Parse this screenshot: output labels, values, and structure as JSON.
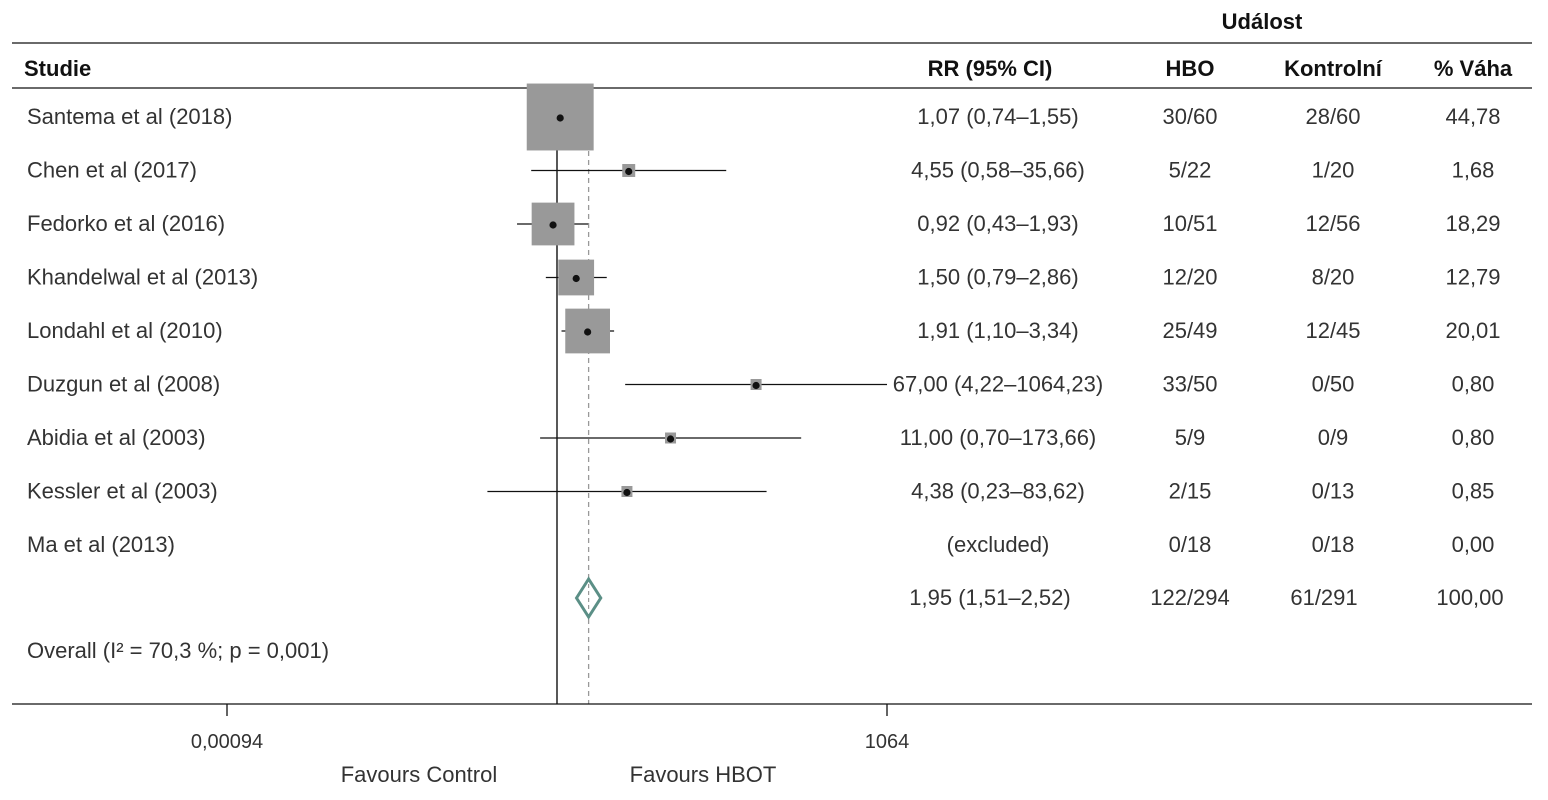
{
  "header": {
    "event_group": "Událost",
    "study": "Studie",
    "rr": "RR (95% CI)",
    "hbo": "HBO",
    "control": "Kontrolní",
    "weight": "% Váha"
  },
  "chart_data": {
    "type": "forest",
    "scale": "log",
    "xlim": [
      0.00094,
      1064
    ],
    "x_ticks": [
      {
        "value": 0.00094,
        "label": "0,00094"
      },
      {
        "value": 1064,
        "label": "1064"
      }
    ],
    "null_line": 1,
    "pooled_line": 1.95,
    "favours_left": "Favours Control",
    "favours_right": "Favours HBOT",
    "studies": [
      {
        "name": "Santema et al (2018)",
        "rr": 1.07,
        "lo": 0.74,
        "hi": 1.55,
        "rr_text": "1,07 (0,74–1,55)",
        "hbo": "30/60",
        "control": "28/60",
        "weight": 44.78,
        "weight_text": "44,78"
      },
      {
        "name": "Chen et al (2017)",
        "rr": 4.55,
        "lo": 0.58,
        "hi": 35.66,
        "rr_text": "4,55 (0,58–35,66)",
        "hbo": "5/22",
        "control": "1/20",
        "weight": 1.68,
        "weight_text": "1,68"
      },
      {
        "name": "Fedorko et al (2016)",
        "rr": 0.92,
        "lo": 0.43,
        "hi": 1.93,
        "rr_text": "0,92 (0,43–1,93)",
        "hbo": "10/51",
        "control": "12/56",
        "weight": 18.29,
        "weight_text": "18,29"
      },
      {
        "name": "Khandelwal et al (2013)",
        "rr": 1.5,
        "lo": 0.79,
        "hi": 2.86,
        "rr_text": "1,50 (0,79–2,86)",
        "hbo": "12/20",
        "control": "8/20",
        "weight": 12.79,
        "weight_text": "12,79"
      },
      {
        "name": "Londahl et al (2010)",
        "rr": 1.91,
        "lo": 1.1,
        "hi": 3.34,
        "rr_text": "1,91 (1,10–3,34)",
        "hbo": "25/49",
        "control": "12/45",
        "weight": 20.01,
        "weight_text": "20,01"
      },
      {
        "name": "Duzgun et al (2008)",
        "rr": 67.0,
        "lo": 4.22,
        "hi": 1064.23,
        "rr_text": "67,00 (4,22–1064,23)",
        "hbo": "33/50",
        "control": "0/50",
        "weight": 0.8,
        "weight_text": "0,80"
      },
      {
        "name": "Abidia et al (2003)",
        "rr": 11.0,
        "lo": 0.7,
        "hi": 173.66,
        "rr_text": "11,00 (0,70–173,66)",
        "hbo": "5/9",
        "control": "0/9",
        "weight": 0.8,
        "weight_text": "0,80"
      },
      {
        "name": "Kessler et al (2003)",
        "rr": 4.38,
        "lo": 0.23,
        "hi": 83.62,
        "rr_text": "4,38 (0,23–83,62)",
        "hbo": "2/15",
        "control": "0/13",
        "weight": 0.85,
        "weight_text": "0,85"
      },
      {
        "name": "Ma et al (2013)",
        "rr": null,
        "lo": null,
        "hi": null,
        "rr_text": "(excluded)",
        "hbo": "0/18",
        "control": "0/18",
        "weight": 0.0,
        "weight_text": "0,00"
      }
    ],
    "overall": {
      "label": "Overall (I² = 70,3 %; p = 0,001)",
      "rr": 1.95,
      "lo": 1.51,
      "hi": 2.52,
      "rr_text": "1,95 (1,51–2,52)",
      "hbo": "122/294",
      "control": "61/291",
      "weight_text": "100,00"
    },
    "colors": {
      "box": "#999999",
      "diamond": "#5b8f86",
      "line": "#111111",
      "dashed": "#999999"
    }
  }
}
